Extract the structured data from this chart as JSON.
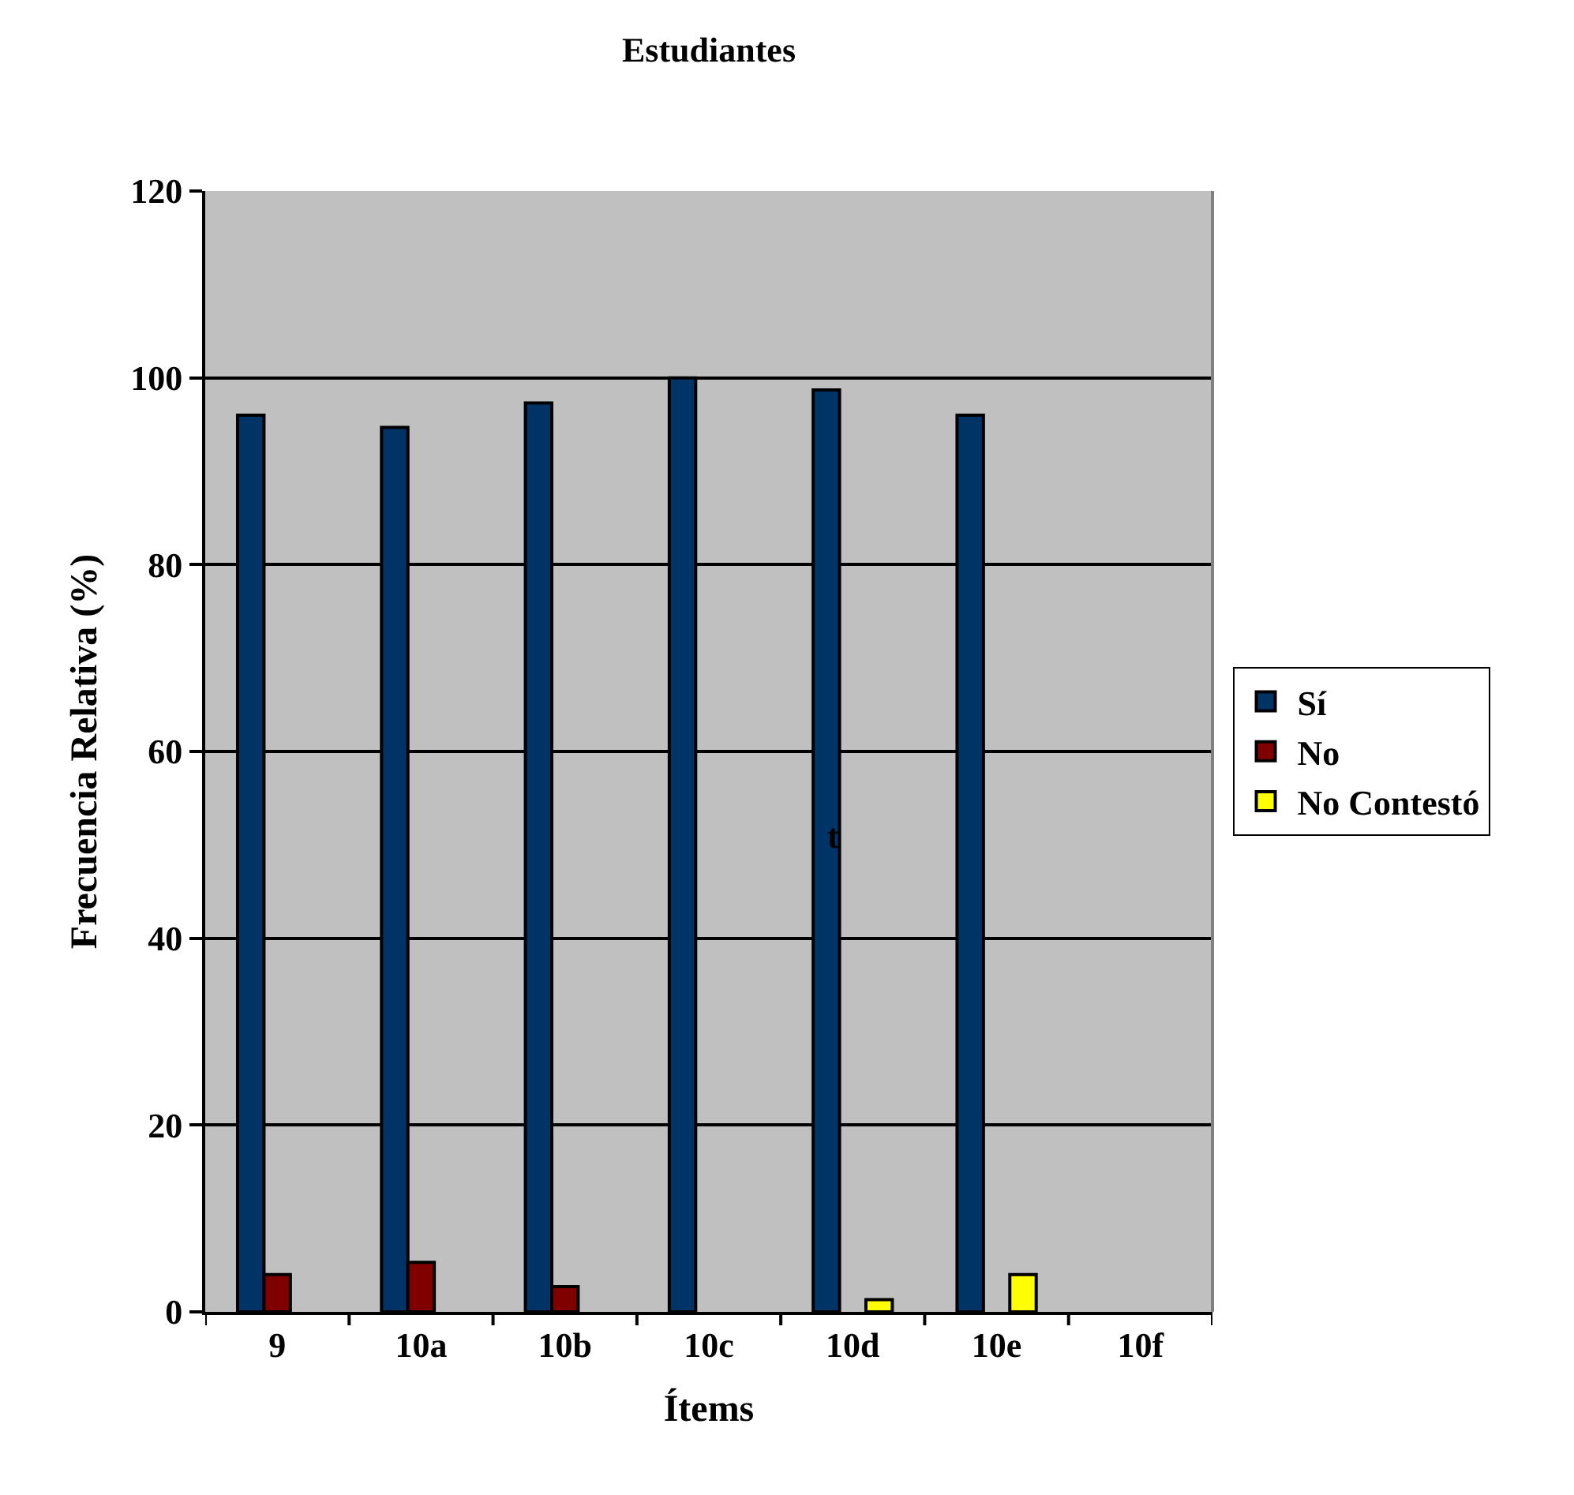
{
  "chart_data": {
    "type": "bar",
    "title": "Estudiantes",
    "xlabel": "Ítems",
    "ylabel": "Frecuencia Relativa (%)",
    "categories": [
      "9",
      "10a",
      "10b",
      "10c",
      "10d",
      "10e",
      "10f"
    ],
    "series": [
      {
        "name": "Sí",
        "color": "#003366",
        "values": [
          96,
          94.7,
          97.3,
          100,
          98.7,
          96,
          null
        ]
      },
      {
        "name": "No",
        "color": "#800000",
        "values": [
          4,
          5.3,
          2.7,
          null,
          null,
          null,
          null
        ]
      },
      {
        "name": "No Contestó",
        "color": "#ffff00",
        "values": [
          null,
          null,
          null,
          null,
          1.3,
          4,
          null
        ]
      }
    ],
    "ylim": [
      0,
      120
    ],
    "yticks": [
      0,
      20,
      40,
      60,
      80,
      100,
      120
    ],
    "grid": "y",
    "legend": "right",
    "annotations": [
      "t"
    ]
  }
}
